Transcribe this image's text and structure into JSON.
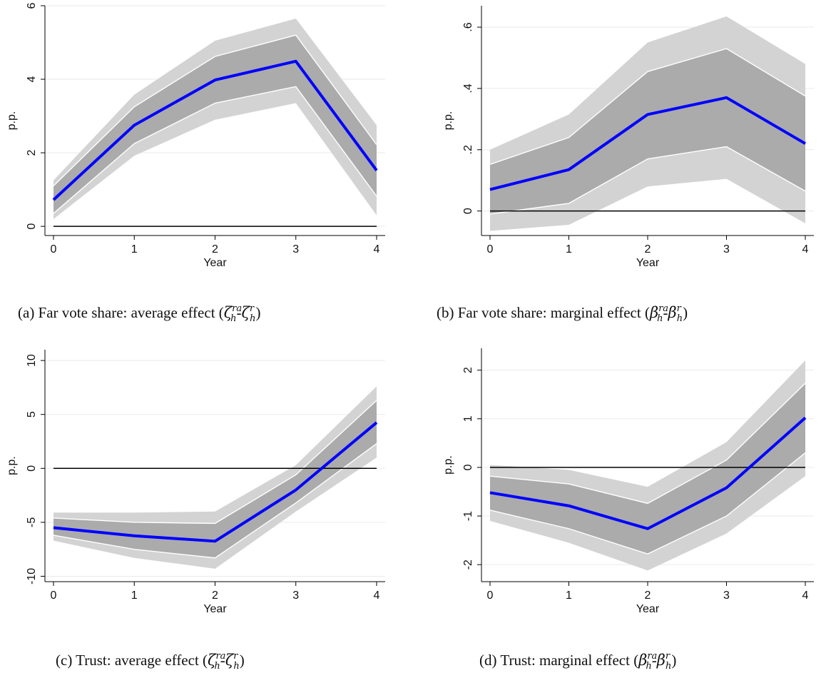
{
  "panels": [
    {
      "caption": "(a) Far vote share: average effect",
      "symbol": "ζ"
    },
    {
      "caption": "(b) Far vote share: marginal effect",
      "symbol": "β"
    },
    {
      "caption": "(c) Trust: average effect",
      "symbol": "ζ"
    },
    {
      "caption": "(d) Trust: marginal effect",
      "symbol": "β"
    }
  ],
  "chart_data": [
    {
      "type": "line",
      "xlabel": "Year",
      "ylabel": "p.p.",
      "x": [
        0,
        1,
        2,
        3,
        4
      ],
      "x_ticks": [
        "0",
        "1",
        "2",
        "3",
        "4"
      ],
      "ylim": [
        -0.25,
        6.0
      ],
      "y_ticks": [
        0,
        2,
        4,
        6
      ],
      "y_tick_labels": [
        "0",
        "2",
        "4",
        "6"
      ],
      "zero_line": true,
      "colors": {
        "line": "#0000ff",
        "outer_band": "#d3d3d3",
        "inner_band": "#ababab",
        "zero": "#000000"
      },
      "series": [
        {
          "estimate": [
            0.72,
            2.75,
            3.98,
            4.49,
            1.52
          ],
          "inner_lower": [
            0.35,
            2.25,
            3.35,
            3.8,
            0.82
          ],
          "inner_upper": [
            1.1,
            3.25,
            4.62,
            5.2,
            2.22
          ],
          "outer_lower": [
            0.2,
            1.92,
            2.9,
            3.35,
            0.3
          ],
          "outer_upper": [
            1.25,
            3.58,
            5.05,
            5.65,
            2.75
          ]
        }
      ]
    },
    {
      "type": "line",
      "xlabel": "Year",
      "ylabel": "p.p.",
      "x": [
        0,
        1,
        2,
        3,
        4
      ],
      "x_ticks": [
        "0",
        "1",
        "2",
        "3",
        "4"
      ],
      "ylim": [
        -0.08,
        0.67
      ],
      "y_ticks": [
        0,
        0.2,
        0.4,
        0.6
      ],
      "y_tick_labels": [
        "0",
        ".2",
        ".4",
        ".6"
      ],
      "zero_line": true,
      "colors": {
        "line": "#0000ff",
        "outer_band": "#d3d3d3",
        "inner_band": "#ababab",
        "zero": "#000000"
      },
      "series": [
        {
          "estimate": [
            0.07,
            0.135,
            0.315,
            0.37,
            0.22
          ],
          "inner_lower": [
            -0.01,
            0.025,
            0.17,
            0.21,
            0.065
          ],
          "inner_upper": [
            0.152,
            0.24,
            0.455,
            0.53,
            0.375
          ],
          "outer_lower": [
            -0.065,
            -0.045,
            0.08,
            0.105,
            -0.04
          ],
          "outer_upper": [
            0.2,
            0.315,
            0.55,
            0.635,
            0.48
          ]
        }
      ]
    },
    {
      "type": "line",
      "xlabel": "Year",
      "ylabel": "p.p.",
      "x": [
        0,
        1,
        2,
        3,
        4
      ],
      "x_ticks": [
        "0",
        "1",
        "2",
        "3",
        "4"
      ],
      "ylim": [
        -10.5,
        11.0
      ],
      "y_ticks": [
        -10,
        -5,
        0,
        5,
        10
      ],
      "y_tick_labels": [
        "-10",
        "-5",
        "0",
        "5",
        "10"
      ],
      "zero_line": true,
      "colors": {
        "line": "#0000ff",
        "outer_band": "#d3d3d3",
        "inner_band": "#ababab",
        "zero": "#000000"
      },
      "series": [
        {
          "estimate": [
            -5.5,
            -6.25,
            -6.75,
            -2.0,
            4.25
          ],
          "inner_lower": [
            -6.2,
            -7.5,
            -8.3,
            -3.2,
            2.3
          ],
          "inner_upper": [
            -4.6,
            -5.0,
            -5.1,
            -0.6,
            6.3
          ],
          "outer_lower": [
            -6.7,
            -8.3,
            -9.3,
            -4.0,
            1.0
          ],
          "outer_upper": [
            -4.1,
            -4.1,
            -4.0,
            0.3,
            7.6
          ]
        }
      ]
    },
    {
      "type": "line",
      "xlabel": "Year",
      "ylabel": "p.p.",
      "x": [
        0,
        1,
        2,
        3,
        4
      ],
      "x_ticks": [
        "0",
        "1",
        "2",
        "3",
        "4"
      ],
      "ylim": [
        -2.35,
        2.45
      ],
      "y_ticks": [
        -2,
        -1,
        0,
        1,
        2
      ],
      "y_tick_labels": [
        "-2",
        "-1",
        "0",
        "1",
        "2"
      ],
      "zero_line": true,
      "colors": {
        "line": "#0000ff",
        "outer_band": "#d3d3d3",
        "inner_band": "#ababab",
        "zero": "#000000"
      },
      "series": [
        {
          "estimate": [
            -0.52,
            -0.79,
            -1.26,
            -0.42,
            1.02
          ],
          "inner_lower": [
            -0.88,
            -1.26,
            -1.78,
            -1.0,
            0.3
          ],
          "inner_upper": [
            -0.18,
            -0.34,
            -0.74,
            0.15,
            1.73
          ],
          "outer_lower": [
            -1.1,
            -1.55,
            -2.12,
            -1.36,
            -0.18
          ],
          "outer_upper": [
            0.05,
            -0.05,
            -0.4,
            0.52,
            2.2
          ]
        }
      ]
    }
  ]
}
